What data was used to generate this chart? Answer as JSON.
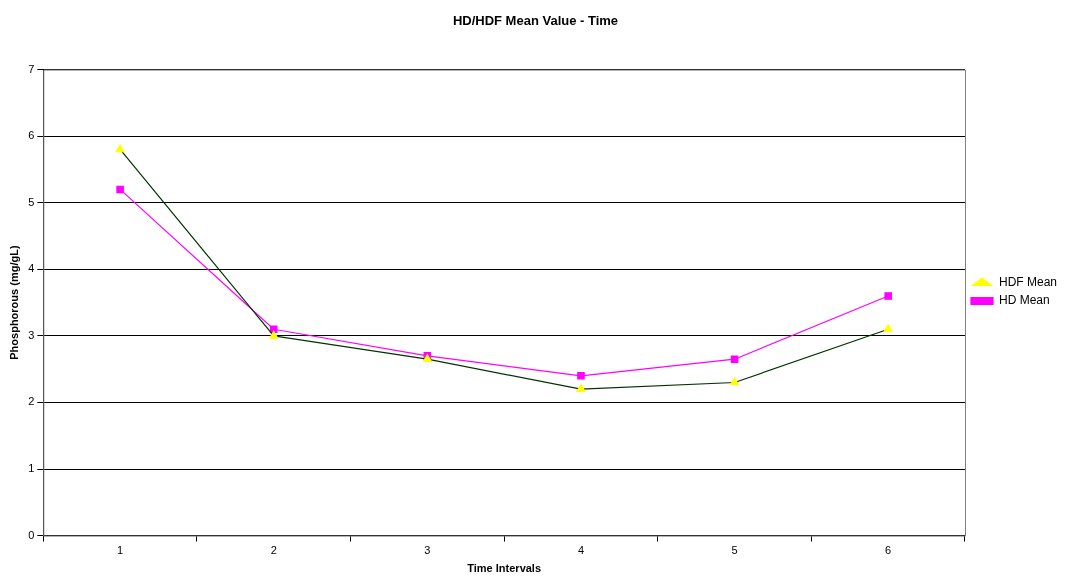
{
  "chart_data": {
    "type": "line",
    "title": "HD/HDF Mean Value - Time",
    "xlabel": "Time Intervals",
    "ylabel": "Phosphorous (mg/gL)",
    "categories": [
      "1",
      "2",
      "3",
      "4",
      "5",
      "6"
    ],
    "series": [
      {
        "name": "HD Mean",
        "color": "#ff00ff",
        "marker": "square",
        "values": [
          5.2,
          3.1,
          2.7,
          2.4,
          2.65,
          3.6
        ]
      },
      {
        "name": "HDF Mean",
        "color": "#003300",
        "colors": [
          "#ffff00",
          "#ffff00",
          "#ffff00",
          "#ffff00",
          "#ffff00",
          "#ffff00"
        ],
        "marker": "triangle",
        "values": [
          5.8,
          3.0,
          2.65,
          2.2,
          2.3,
          3.1
        ]
      }
    ],
    "ylim": [
      0,
      7
    ],
    "yticks": [
      0,
      1,
      2,
      3,
      4,
      5,
      6,
      7
    ],
    "grid": "y",
    "legend": "right",
    "line_style": "solid"
  }
}
